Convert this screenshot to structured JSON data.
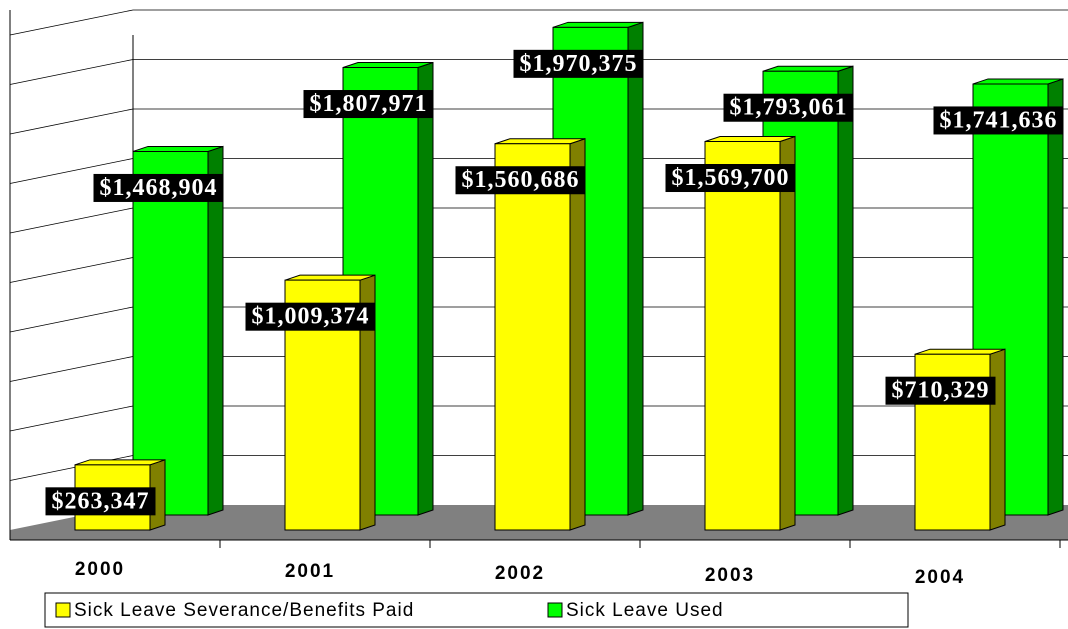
{
  "chart_data": {
    "type": "bar3d",
    "categories": [
      "2000",
      "2001",
      "2002",
      "2003",
      "2004"
    ],
    "series": [
      {
        "name": "Sick Leave Severance/Benefits Paid",
        "color": "#ffff00",
        "values": [
          263347,
          1009374,
          1560686,
          1569700,
          710329
        ],
        "value_labels": [
          "$263,347",
          "$1,009,374",
          "$1,560,686",
          "$1,569,700",
          "$710,329"
        ]
      },
      {
        "name": "Sick Leave Used",
        "color": "#00ff00",
        "values": [
          1468904,
          1807971,
          1970375,
          1793061,
          1741636
        ],
        "value_labels": [
          "$1,468,904",
          "$1,807,971",
          "$1,970,375",
          "$1,793,061",
          "$1,741,636"
        ]
      }
    ],
    "ylim": [
      0,
      2000000
    ],
    "yticks": [
      0,
      200000,
      400000,
      600000,
      800000,
      1000000,
      1200000,
      1400000,
      1600000,
      1800000,
      2000000
    ],
    "grid": true,
    "legend": "bottom"
  }
}
